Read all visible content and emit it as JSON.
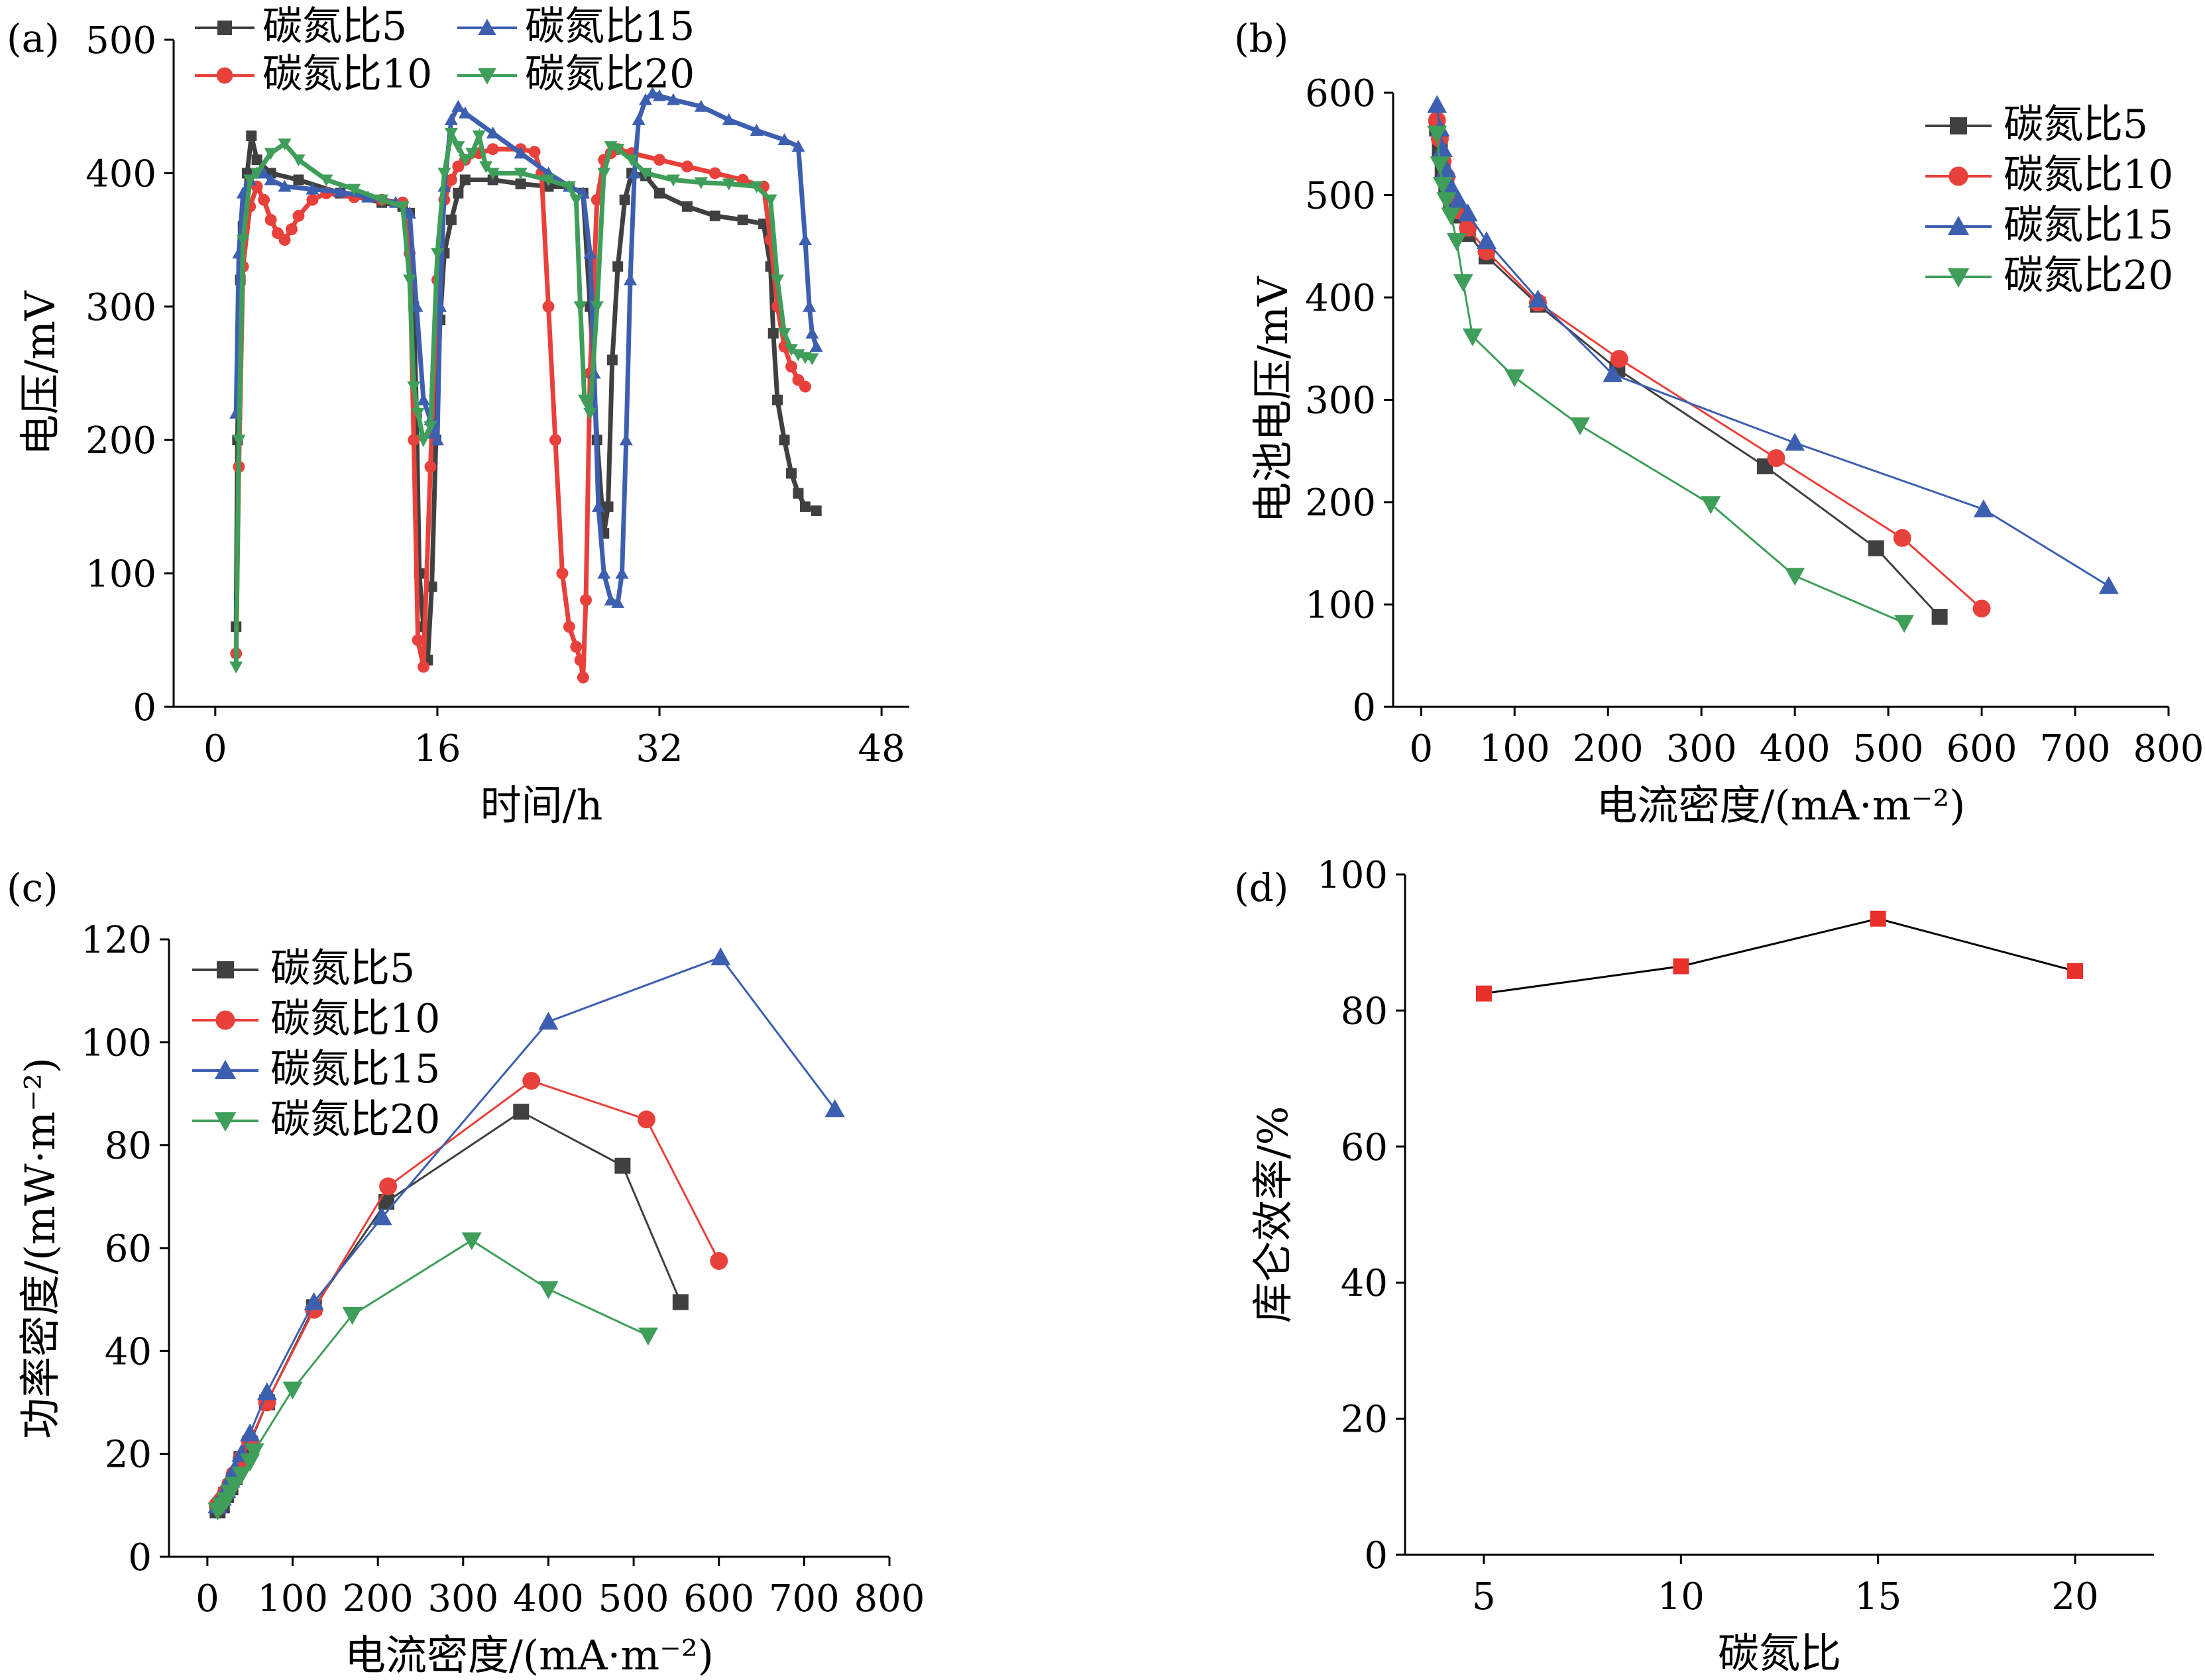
{
  "figure": {
    "panels": [
      "(a)",
      "(b)",
      "(c)",
      "(d)"
    ]
  },
  "colors": {
    "cn5": "#404040",
    "cn10": "#e8403a",
    "cn15": "#3d5fb0",
    "cn20": "#3f9e5a",
    "d_marker": "#e8312a",
    "d_line": "#000000"
  },
  "chart_data": [
    {
      "panel": "(a)",
      "type": "line",
      "xlabel": "时间/h",
      "ylabel": "电压/mV",
      "xlim": [
        -3,
        50
      ],
      "ylim": [
        0,
        500
      ],
      "xticks": [
        0,
        16,
        32,
        48
      ],
      "yticks": [
        0,
        100,
        200,
        300,
        400,
        500
      ],
      "legend_placement": "top",
      "series": [
        {
          "name": "碳氮比5",
          "marker": "square",
          "x": [
            1.5,
            1.6,
            1.8,
            2.0,
            2.3,
            2.6,
            3.0,
            4.0,
            6.0,
            9.0,
            12.0,
            13.5,
            14.0,
            14.3,
            14.5,
            14.7,
            15.0,
            15.3,
            15.6,
            15.9,
            16.2,
            16.5,
            17.0,
            17.5,
            18.0,
            20.0,
            22.0,
            24.0,
            25.5,
            26.5,
            27.0,
            27.5,
            28.0,
            28.3,
            28.6,
            29.0,
            29.5,
            30.0,
            31.0,
            32.0,
            34.0,
            36.0,
            38.0,
            39.5,
            40.0,
            40.2,
            40.5,
            41.0,
            41.5,
            42.0,
            42.5,
            43.3
          ],
          "y": [
            60,
            200,
            320,
            360,
            400,
            428,
            410,
            400,
            395,
            385,
            378,
            375,
            370,
            300,
            220,
            100,
            60,
            35,
            90,
            200,
            290,
            340,
            365,
            385,
            395,
            395,
            392,
            390,
            390,
            385,
            300,
            200,
            130,
            150,
            260,
            330,
            380,
            400,
            398,
            385,
            375,
            368,
            365,
            362,
            330,
            280,
            230,
            200,
            175,
            160,
            150,
            147
          ]
        },
        {
          "name": "碳氮比10",
          "marker": "circle",
          "x": [
            1.5,
            1.7,
            2.0,
            2.5,
            3.0,
            3.5,
            4.0,
            4.5,
            5.0,
            5.5,
            6.0,
            7.0,
            8.0,
            10.0,
            12.0,
            13.5,
            14.0,
            14.3,
            14.6,
            15.0,
            15.5,
            16.0,
            16.5,
            17.0,
            17.5,
            18.0,
            19.0,
            20.0,
            22.0,
            23.0,
            23.5,
            24.0,
            24.5,
            25.0,
            25.5,
            26.0,
            26.3,
            26.5,
            26.7,
            27.0,
            27.5,
            28.0,
            28.5,
            29.0,
            30.0,
            32.0,
            34.0,
            36.0,
            38.0,
            39.5,
            40.0,
            40.5,
            41.0,
            41.5,
            42.0,
            42.5
          ],
          "y": [
            40,
            180,
            330,
            375,
            390,
            380,
            365,
            355,
            350,
            358,
            368,
            380,
            385,
            382,
            380,
            378,
            340,
            200,
            50,
            30,
            180,
            320,
            380,
            395,
            405,
            410,
            415,
            418,
            418,
            416,
            400,
            300,
            200,
            100,
            60,
            45,
            35,
            22,
            80,
            250,
            380,
            410,
            415,
            418,
            415,
            410,
            405,
            400,
            395,
            390,
            350,
            300,
            270,
            255,
            245,
            240
          ]
        },
        {
          "name": "碳氮比15",
          "marker": "triangle-up",
          "x": [
            1.5,
            1.7,
            2.0,
            2.5,
            3.0,
            3.5,
            4.0,
            5.0,
            7.0,
            9.0,
            11.0,
            13.0,
            14.0,
            14.5,
            15.0,
            15.5,
            15.8,
            16.0,
            16.2,
            16.5,
            17.0,
            17.5,
            18.0,
            20.0,
            22.0,
            24.0,
            25.5,
            26.5,
            27.0,
            27.3,
            27.6,
            28.0,
            28.5,
            29.0,
            29.3,
            29.6,
            29.9,
            30.2,
            30.5,
            31.0,
            31.5,
            32.0,
            33.0,
            35.0,
            37.0,
            39.0,
            41.0,
            42.0,
            42.5,
            42.8,
            43.0,
            43.3
          ],
          "y": [
            220,
            340,
            385,
            395,
            400,
            400,
            395,
            390,
            388,
            386,
            382,
            378,
            370,
            300,
            230,
            215,
            205,
            200,
            300,
            390,
            440,
            450,
            445,
            430,
            415,
            400,
            390,
            385,
            340,
            250,
            150,
            100,
            80,
            78,
            100,
            200,
            320,
            400,
            440,
            455,
            460,
            458,
            455,
            450,
            440,
            432,
            425,
            420,
            350,
            300,
            280,
            270
          ]
        },
        {
          "name": "碳氮比20",
          "marker": "triangle-down",
          "x": [
            1.5,
            1.7,
            2.0,
            2.5,
            3.0,
            4.0,
            5.0,
            6.0,
            8.0,
            10.0,
            12.0,
            13.5,
            14.0,
            14.3,
            14.6,
            15.0,
            15.5,
            16.0,
            16.5,
            17.0,
            17.5,
            18.0,
            18.5,
            19.0,
            19.5,
            20.0,
            22.0,
            24.0,
            25.5,
            26.0,
            26.3,
            26.6,
            27.0,
            27.5,
            28.0,
            28.5,
            29.0,
            30.0,
            31.0,
            33.0,
            35.0,
            37.0,
            39.0,
            40.0,
            40.5,
            41.0,
            41.5,
            42.0,
            42.5,
            43.0
          ],
          "y": [
            30,
            200,
            350,
            395,
            400,
            415,
            422,
            410,
            395,
            388,
            380,
            375,
            320,
            240,
            220,
            200,
            210,
            340,
            400,
            430,
            420,
            410,
            415,
            428,
            405,
            400,
            400,
            395,
            390,
            380,
            300,
            230,
            220,
            300,
            400,
            420,
            418,
            410,
            400,
            395,
            393,
            392,
            390,
            380,
            320,
            280,
            268,
            264,
            262,
            261
          ]
        }
      ]
    },
    {
      "panel": "(b)",
      "type": "line",
      "xlabel": "电流密度/(mA·m⁻²)",
      "ylabel": "电池电压/mV",
      "xlim": [
        -30,
        800
      ],
      "ylim": [
        0,
        600
      ],
      "xticks": [
        0,
        100,
        200,
        300,
        400,
        500,
        600,
        700,
        800
      ],
      "yticks": [
        0,
        100,
        200,
        300,
        400,
        500,
        600
      ],
      "legend_placement": "top-right",
      "series": [
        {
          "name": "碳氮比5",
          "marker": "square",
          "x": [
            17,
            20,
            23,
            27,
            32,
            40,
            50,
            70,
            125,
            210,
            368,
            487,
            555
          ],
          "y": [
            565,
            545,
            525,
            510,
            495,
            480,
            462,
            440,
            393,
            330,
            235,
            155,
            88
          ]
        },
        {
          "name": "碳氮比10",
          "marker": "circle",
          "x": [
            17,
            20,
            23,
            27,
            32,
            40,
            50,
            70,
            125,
            212,
            380,
            515,
            600
          ],
          "y": [
            573,
            555,
            533,
            518,
            500,
            485,
            468,
            445,
            395,
            340,
            243,
            165,
            96
          ]
        },
        {
          "name": "碳氮比15",
          "marker": "triangle-up",
          "x": [
            17,
            20,
            23,
            27,
            32,
            40,
            50,
            70,
            125,
            205,
            400,
            602,
            736
          ],
          "y": [
            588,
            565,
            545,
            525,
            508,
            495,
            482,
            455,
            398,
            325,
            258,
            193,
            118
          ]
        },
        {
          "name": "碳氮比20",
          "marker": "triangle-down",
          "x": [
            17,
            20,
            23,
            27,
            32,
            38,
            45,
            55,
            100,
            170,
            310,
            400,
            517
          ],
          "y": [
            560,
            530,
            510,
            495,
            480,
            455,
            415,
            362,
            322,
            275,
            198,
            128,
            82
          ]
        }
      ]
    },
    {
      "panel": "(c)",
      "type": "line",
      "xlabel": "电流密度/(mA·m⁻²)",
      "ylabel": "功率密度/(mW·m⁻²)",
      "xlim": [
        -45,
        800
      ],
      "ylim": [
        0,
        120
      ],
      "xticks": [
        0,
        100,
        200,
        300,
        400,
        500,
        600,
        700,
        800
      ],
      "yticks": [
        0,
        20,
        40,
        60,
        80,
        100,
        120
      ],
      "legend_placement": "top-left",
      "series": [
        {
          "name": "碳氮比5",
          "marker": "square",
          "x": [
            12,
            17,
            22,
            27,
            32,
            40,
            50,
            70,
            125,
            210,
            368,
            487,
            555
          ],
          "y": [
            9,
            10,
            12,
            13.5,
            15.5,
            19,
            22,
            30,
            48.5,
            69,
            86.5,
            76,
            49.5
          ]
        },
        {
          "name": "碳氮比10",
          "marker": "circle",
          "x": [
            12,
            17,
            22,
            27,
            32,
            40,
            50,
            70,
            125,
            212,
            380,
            515,
            600
          ],
          "y": [
            10,
            11,
            12.5,
            14,
            16,
            19,
            22.5,
            30,
            48,
            72,
            92.5,
            85,
            57.5
          ]
        },
        {
          "name": "碳氮比15",
          "marker": "triangle-up",
          "x": [
            12,
            17,
            22,
            27,
            32,
            40,
            50,
            70,
            125,
            205,
            400,
            602,
            736
          ],
          "y": [
            10,
            11.5,
            13,
            15,
            17,
            20,
            24,
            32,
            49.5,
            66,
            104,
            116.5,
            87
          ]
        },
        {
          "name": "碳氮比20",
          "marker": "triangle-down",
          "x": [
            12,
            17,
            22,
            27,
            32,
            40,
            50,
            55,
            100,
            170,
            310,
            400,
            517
          ],
          "y": [
            9,
            10,
            11,
            12.5,
            14,
            16,
            18.5,
            20.5,
            32.5,
            47,
            61.5,
            52,
            43
          ]
        }
      ]
    },
    {
      "panel": "(d)",
      "type": "line",
      "xlabel": "碳氮比",
      "ylabel": "库仑效率/%",
      "xlim": [
        3,
        22
      ],
      "ylim": [
        0,
        100
      ],
      "xticks": [
        5,
        10,
        15,
        20
      ],
      "yticks": [
        0,
        20,
        40,
        60,
        80,
        100
      ],
      "categories": [
        "5",
        "10",
        "15",
        "20"
      ],
      "series": [
        {
          "marker": "square",
          "x": [
            5,
            10,
            15,
            20
          ],
          "y": [
            82.5,
            86.5,
            93.5,
            85.8
          ]
        }
      ]
    }
  ]
}
